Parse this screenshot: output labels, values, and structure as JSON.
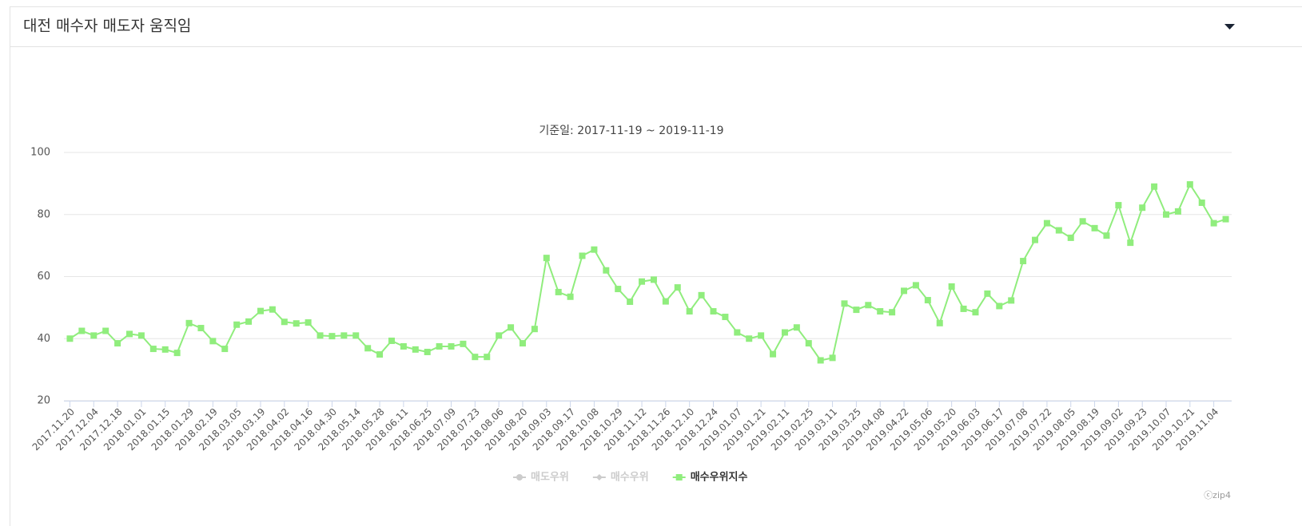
{
  "header": {
    "title": "대전 매수자 매도자 움직임"
  },
  "chart_data": {
    "type": "line",
    "subtitle": "기준일: 2017-11-19 ~ 2019-11-19",
    "credit": "ⓒzip4",
    "categories": [
      "2017.11.20",
      null,
      "2017.12.04",
      null,
      "2017.12.18",
      null,
      "2018.01.01",
      null,
      "2018.01.15",
      null,
      "2018.01.29",
      null,
      "2018.02.19",
      null,
      "2018.03.05",
      null,
      "2018.03.19",
      null,
      "2018.04.02",
      null,
      "2018.04.16",
      null,
      "2018.04.30",
      null,
      "2018.05.14",
      null,
      "2018.05.28",
      null,
      "2018.06.11",
      null,
      "2018.06.25",
      null,
      "2018.07.09",
      null,
      "2018.07.23",
      null,
      "2018.08.06",
      null,
      "2018.08.20",
      null,
      "2018.09.03",
      null,
      "2018.09.17",
      null,
      "2018.10.08",
      null,
      "2018.10.29",
      null,
      "2018.11.12",
      null,
      "2018.11.26",
      null,
      "2018.12.10",
      null,
      "2018.12.24",
      null,
      "2019.01.07",
      null,
      "2019.01.21",
      null,
      "2019.02.11",
      null,
      "2019.02.25",
      null,
      "2019.03.11",
      null,
      "2019.03.25",
      null,
      "2019.04.08",
      null,
      "2019.04.22",
      null,
      "2019.05.06",
      null,
      "2019.05.20",
      null,
      "2019.06.03",
      null,
      "2019.06.17",
      null,
      "2019.07.08",
      null,
      "2019.07.22",
      null,
      "2019.08.05",
      null,
      "2019.08.19",
      null,
      "2019.09.02",
      null,
      "2019.09.23",
      null,
      "2019.10.07",
      null,
      "2019.10.21",
      null,
      "2019.11.04",
      null
    ],
    "series": [
      {
        "name": "매도우위",
        "color": "#cccccc",
        "marker": "circle",
        "visible": false
      },
      {
        "name": "매수우위",
        "color": "#cccccc",
        "marker": "diamond",
        "visible": false
      },
      {
        "name": "매수우위지수",
        "color": "#90ed7d",
        "marker": "square",
        "visible": true,
        "values": [
          40,
          42.5,
          41,
          42.5,
          38.5,
          41.5,
          41,
          36.7,
          36.5,
          35.4,
          45,
          43.4,
          39.2,
          36.7,
          44.5,
          45.5,
          48.9,
          49.4,
          45.4,
          44.9,
          45.2,
          41,
          40.8,
          41,
          41,
          36.9,
          34.9,
          39.3,
          37.5,
          36.5,
          35.7,
          37.5,
          37.5,
          38.3,
          34.1,
          34.1,
          41,
          43.6,
          38.5,
          43.1,
          66,
          55,
          53.5,
          66.7,
          68.7,
          62,
          56,
          51.9,
          58.4,
          59,
          52,
          56.5,
          48.8,
          54,
          48.8,
          47,
          42,
          40,
          41,
          35,
          42,
          43.6,
          38.5,
          33,
          33.8,
          51.3,
          49.3,
          50.8,
          48.8,
          48.5,
          55.4,
          57.2,
          52.4,
          45,
          56.8,
          49.6,
          48.5,
          54.5,
          50.5,
          52.3,
          65,
          71.8,
          77.2,
          74.9,
          72.5,
          77.8,
          75.6,
          73.2,
          83,
          70.9,
          82.2,
          89,
          80,
          81,
          89.7,
          83.8,
          77.2,
          78.5
        ]
      }
    ],
    "ylim": [
      20,
      100
    ],
    "yticks": [
      20,
      40,
      60,
      80,
      100
    ],
    "grid": true
  }
}
